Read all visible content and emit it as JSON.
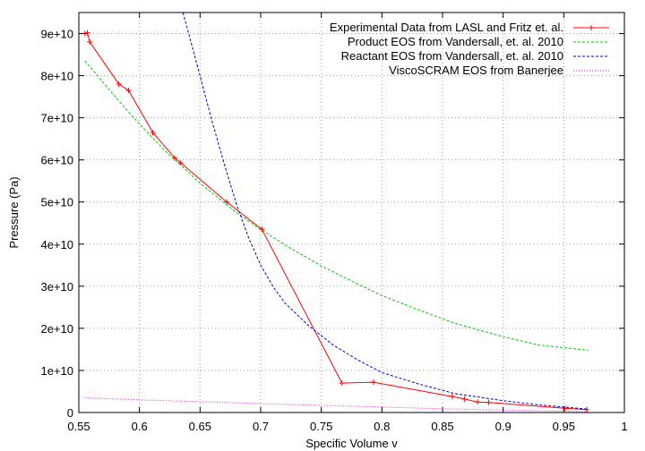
{
  "chart_data": {
    "type": "line",
    "xlabel": "Specific Volume v",
    "ylabel": "Pressure (Pa)",
    "xlim": [
      0.55,
      1.0
    ],
    "ylim": [
      0,
      95000000000.0
    ],
    "x_ticks": [
      0.55,
      0.6,
      0.65,
      0.7,
      0.75,
      0.8,
      0.85,
      0.9,
      0.95,
      1.0
    ],
    "x_tick_labels": [
      "0.55",
      "0.6",
      "0.65",
      "0.7",
      "0.75",
      "0.8",
      "0.85",
      "0.9",
      "0.95",
      "1"
    ],
    "y_ticks": [
      0,
      10000000000.0,
      20000000000.0,
      30000000000.0,
      40000000000.0,
      50000000000.0,
      60000000000.0,
      70000000000.0,
      80000000000.0,
      90000000000.0
    ],
    "y_tick_labels": [
      "0",
      "1e+10",
      "2e+10",
      "3e+10",
      "4e+10",
      "5e+10",
      "6e+10",
      "7e+10",
      "8e+10",
      "9e+10"
    ],
    "grid": true,
    "legend_position": "top-right",
    "series": [
      {
        "name": "Experimental Data from LASL and Fritz et. al.",
        "color": "#ff0000",
        "style": "solid-points",
        "x": [
          0.555,
          0.557,
          0.559,
          0.583,
          0.591,
          0.611,
          0.629,
          0.634,
          0.672,
          0.701,
          0.767,
          0.793,
          0.858,
          0.868,
          0.879,
          0.888,
          0.951,
          0.969
        ],
        "y": [
          90000000000.0,
          90200000000.0,
          88000000000.0,
          78000000000.0,
          76500000000.0,
          66500000000.0,
          60500000000.0,
          59300000000.0,
          50000000000.0,
          43500000000.0,
          7000000000.0,
          7200000000.0,
          3800000000.0,
          3200000000.0,
          2500000000.0,
          2400000000.0,
          1000000000.0,
          700000000.0
        ]
      },
      {
        "name": "Product EOS from Vandersall, et. al. 2010",
        "color": "#00cc00",
        "style": "dashed",
        "x": [
          0.555,
          0.58,
          0.6,
          0.62,
          0.65,
          0.68,
          0.7,
          0.72,
          0.75,
          0.78,
          0.8,
          0.83,
          0.86,
          0.9,
          0.93,
          0.97
        ],
        "y": [
          83500000000.0,
          75000000000.0,
          68500000000.0,
          62500000000.0,
          54500000000.0,
          47500000000.0,
          43500000000.0,
          39800000000.0,
          34800000000.0,
          30500000000.0,
          27800000000.0,
          24400000000.0,
          21200000000.0,
          18000000000.0,
          16000000000.0,
          14800000000.0
        ]
      },
      {
        "name": "Reactant EOS from Vandersall, et. al. 2010",
        "color": "#0000cc",
        "style": "dashed",
        "x": [
          0.635,
          0.65,
          0.66,
          0.67,
          0.68,
          0.69,
          0.7,
          0.71,
          0.72,
          0.74,
          0.76,
          0.78,
          0.8,
          0.83,
          0.86,
          0.9,
          0.93,
          0.97
        ],
        "y": [
          96000000000.0,
          80000000000.0,
          69000000000.0,
          59000000000.0,
          49500000000.0,
          41500000000.0,
          35000000000.0,
          30000000000.0,
          26000000000.0,
          20500000000.0,
          16000000000.0,
          12500000000.0,
          9500000000.0,
          6800000000.0,
          4500000000.0,
          2800000000.0,
          1800000000.0,
          800000000.0
        ]
      },
      {
        "name": "ViscoSCRAM EOS from Banerjee",
        "color": "#ff00ff",
        "style": "dotted",
        "x": [
          0.555,
          0.6,
          0.65,
          0.7,
          0.75,
          0.8,
          0.85,
          0.9,
          0.95,
          0.97
        ],
        "y": [
          3500000000.0,
          3000000000.0,
          2600000000.0,
          2100000000.0,
          1700000000.0,
          1300000000.0,
          900000000.0,
          600000000.0,
          300000000.0,
          200000000.0
        ]
      }
    ]
  }
}
